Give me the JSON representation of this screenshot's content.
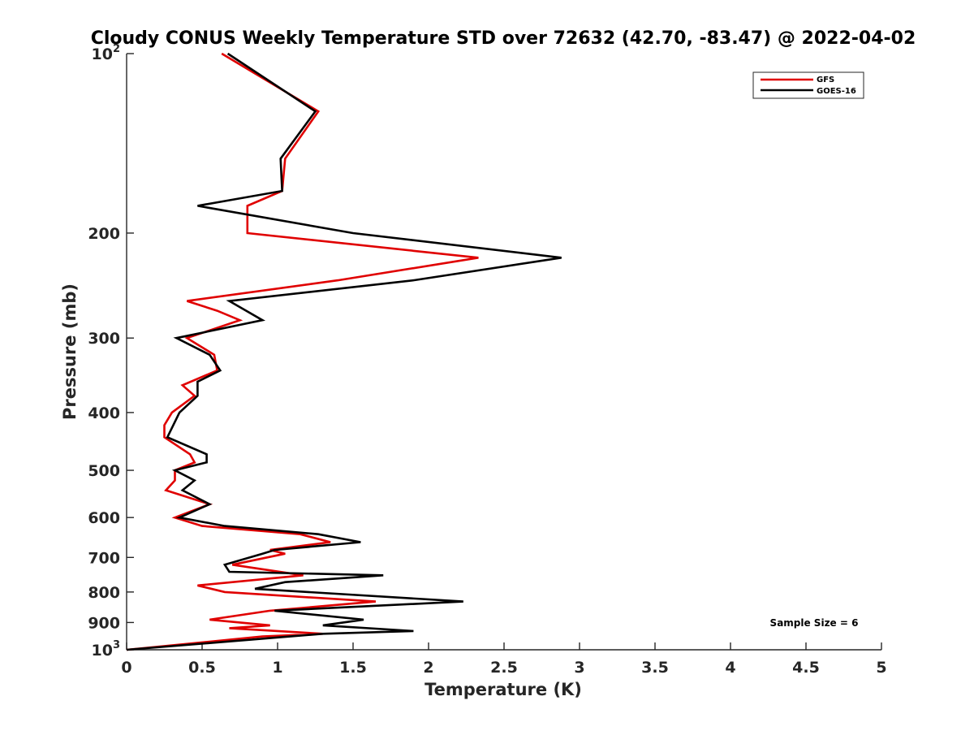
{
  "chart_data": {
    "type": "line",
    "title": "Cloudy CONUS Weekly Temperature STD over 72632 (42.70, -83.47) @ 2022-04-02",
    "xlabel": "Temperature (K)",
    "ylabel": "Pressure (mb)",
    "xlim": [
      0,
      5
    ],
    "ylim": [
      100,
      1000
    ],
    "y_scale": "log",
    "y_reversed": true,
    "x_ticks": [
      {
        "value": 0,
        "label": "0"
      },
      {
        "value": 0.5,
        "label": "0.5"
      },
      {
        "value": 1,
        "label": "1"
      },
      {
        "value": 1.5,
        "label": "1.5"
      },
      {
        "value": 2,
        "label": "2"
      },
      {
        "value": 2.5,
        "label": "2.5"
      },
      {
        "value": 3,
        "label": "3"
      },
      {
        "value": 3.5,
        "label": "3.5"
      },
      {
        "value": 4,
        "label": "4"
      },
      {
        "value": 4.5,
        "label": "4.5"
      },
      {
        "value": 5,
        "label": "5"
      }
    ],
    "y_ticks": [
      {
        "value": 100,
        "label": "10",
        "sup": "2"
      },
      {
        "value": 200,
        "label": "200"
      },
      {
        "value": 300,
        "label": "300"
      },
      {
        "value": 400,
        "label": "400"
      },
      {
        "value": 500,
        "label": "500"
      },
      {
        "value": 600,
        "label": "600"
      },
      {
        "value": 700,
        "label": "700"
      },
      {
        "value": 800,
        "label": "800"
      },
      {
        "value": 900,
        "label": "900"
      },
      {
        "value": 1000,
        "label": "10",
        "sup": "3"
      }
    ],
    "grid": false,
    "legend_position": "top-right",
    "annotation": "Sample Size = 6",
    "series": [
      {
        "name": "GFS",
        "color": "#e00000",
        "points": [
          [
            0.63,
            100
          ],
          [
            1.27,
            125
          ],
          [
            1.05,
            150
          ],
          [
            1.03,
            170
          ],
          [
            0.8,
            180
          ],
          [
            0.8,
            200
          ],
          [
            2.33,
            220
          ],
          [
            1.4,
            240
          ],
          [
            0.4,
            260
          ],
          [
            0.6,
            270
          ],
          [
            0.75,
            280
          ],
          [
            0.4,
            300
          ],
          [
            0.58,
            320
          ],
          [
            0.6,
            340
          ],
          [
            0.37,
            360
          ],
          [
            0.45,
            375
          ],
          [
            0.3,
            400
          ],
          [
            0.25,
            420
          ],
          [
            0.25,
            440
          ],
          [
            0.42,
            470
          ],
          [
            0.45,
            485
          ],
          [
            0.32,
            500
          ],
          [
            0.32,
            520
          ],
          [
            0.26,
            540
          ],
          [
            0.55,
            570
          ],
          [
            0.32,
            600
          ],
          [
            0.5,
            620
          ],
          [
            1.15,
            640
          ],
          [
            1.35,
            660
          ],
          [
            0.95,
            680
          ],
          [
            1.05,
            690
          ],
          [
            0.7,
            720
          ],
          [
            1.17,
            750
          ],
          [
            0.47,
            780
          ],
          [
            0.65,
            800
          ],
          [
            1.65,
            830
          ],
          [
            0.95,
            860
          ],
          [
            0.55,
            890
          ],
          [
            0.95,
            910
          ],
          [
            0.68,
            920
          ],
          [
            1.3,
            940
          ],
          [
            0.9,
            950
          ],
          [
            0.0,
            1000
          ]
        ]
      },
      {
        "name": "GOES-16",
        "color": "#000000",
        "points": [
          [
            0.67,
            100
          ],
          [
            1.25,
            125
          ],
          [
            1.02,
            150
          ],
          [
            1.03,
            170
          ],
          [
            0.47,
            180
          ],
          [
            1.5,
            200
          ],
          [
            2.88,
            220
          ],
          [
            1.9,
            240
          ],
          [
            0.68,
            260
          ],
          [
            0.9,
            280
          ],
          [
            0.33,
            300
          ],
          [
            0.55,
            320
          ],
          [
            0.62,
            340
          ],
          [
            0.47,
            355
          ],
          [
            0.47,
            375
          ],
          [
            0.35,
            400
          ],
          [
            0.27,
            440
          ],
          [
            0.53,
            470
          ],
          [
            0.53,
            485
          ],
          [
            0.32,
            500
          ],
          [
            0.45,
            520
          ],
          [
            0.37,
            540
          ],
          [
            0.55,
            570
          ],
          [
            0.35,
            600
          ],
          [
            0.65,
            620
          ],
          [
            1.27,
            640
          ],
          [
            1.55,
            660
          ],
          [
            0.98,
            680
          ],
          [
            0.9,
            690
          ],
          [
            0.65,
            720
          ],
          [
            0.68,
            740
          ],
          [
            1.7,
            750
          ],
          [
            1.05,
            770
          ],
          [
            0.85,
            790
          ],
          [
            2.23,
            830
          ],
          [
            0.98,
            860
          ],
          [
            1.57,
            890
          ],
          [
            1.3,
            910
          ],
          [
            1.9,
            930
          ],
          [
            1.3,
            940
          ],
          [
            0.0,
            1000
          ]
        ]
      }
    ]
  }
}
